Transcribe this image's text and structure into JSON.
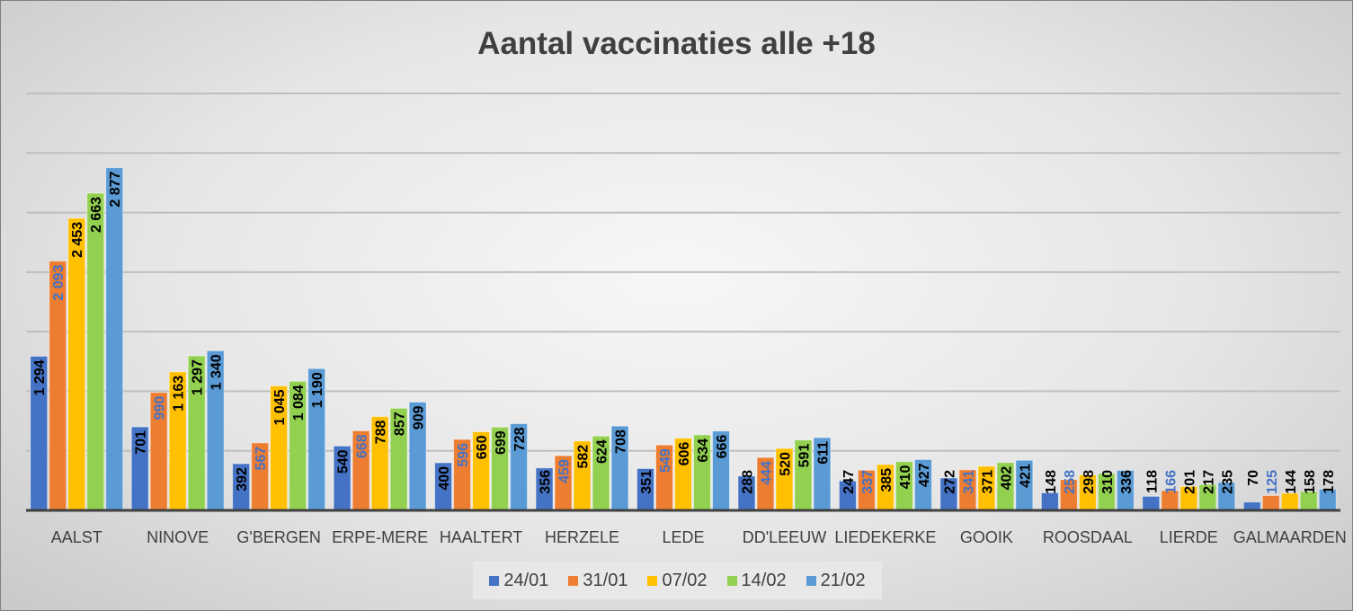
{
  "chart_data": {
    "type": "bar",
    "title": "Aantal vaccinaties alle +18",
    "xlabel": "",
    "ylabel": "",
    "ylim": [
      0,
      3500
    ],
    "grid_step": 500,
    "grid": true,
    "legend_placement": "bottom",
    "categories": [
      "AALST",
      "NINOVE",
      "G'BERGEN",
      "ERPE-MERE",
      "HAALTERT",
      "HERZELE",
      "LEDE",
      "DD'LEEUW",
      "LIEDEKERKE",
      "GOOIK",
      "ROOSDAAL",
      "LIERDE",
      "GALMAARDEN"
    ],
    "series": [
      {
        "name": "24/01",
        "color": "#4472c4",
        "label_color": "#000000",
        "values": [
          1294,
          701,
          392,
          540,
          400,
          356,
          351,
          288,
          247,
          272,
          148,
          118,
          70
        ]
      },
      {
        "name": "31/01",
        "color": "#ed7d31",
        "label_color": "#4472c4",
        "values": [
          2093,
          990,
          567,
          668,
          596,
          459,
          549,
          444,
          337,
          341,
          258,
          166,
          125
        ]
      },
      {
        "name": "07/02",
        "color": "#ffc000",
        "label_color": "#000000",
        "values": [
          2453,
          1163,
          1045,
          788,
          660,
          582,
          606,
          520,
          385,
          371,
          298,
          201,
          144
        ]
      },
      {
        "name": "14/02",
        "color": "#92d050",
        "label_color": "#000000",
        "values": [
          2663,
          1297,
          1084,
          857,
          699,
          624,
          634,
          591,
          410,
          402,
          310,
          217,
          158
        ]
      },
      {
        "name": "21/02",
        "color": "#5b9bd5",
        "label_color": "#000000",
        "values": [
          2877,
          1340,
          1190,
          909,
          728,
          708,
          666,
          611,
          427,
          421,
          336,
          235,
          178
        ]
      }
    ]
  }
}
